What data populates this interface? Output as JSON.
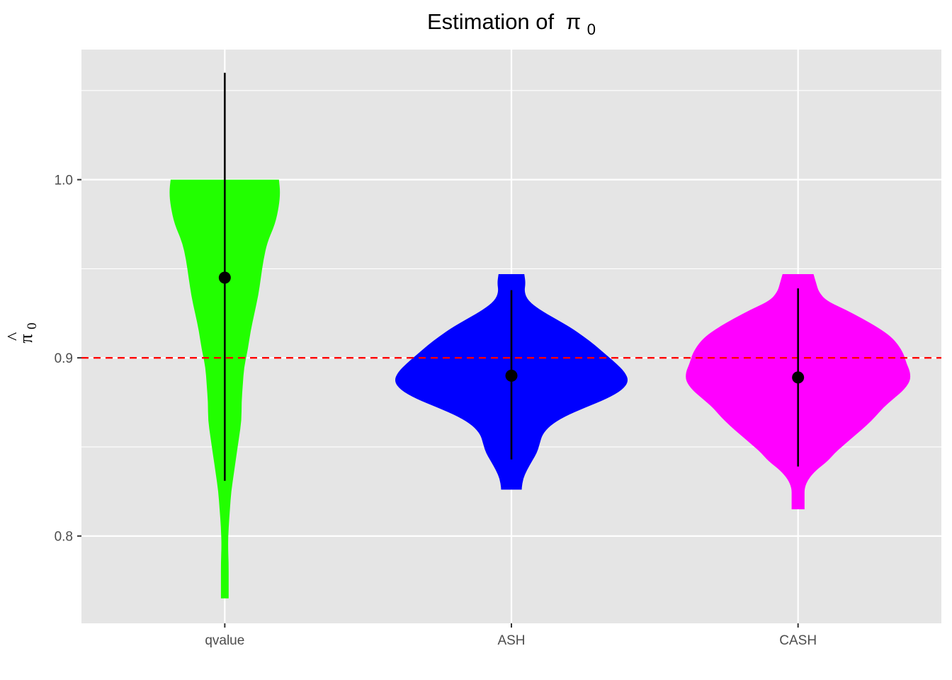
{
  "chart_data": {
    "type": "violin",
    "title": "Estimation of",
    "title_symbol": "π",
    "title_subscript": "0",
    "ylabel_hat": "^",
    "ylabel_symbol": "π",
    "ylabel_subscript": "0",
    "xlabel": "",
    "categories": [
      "qvalue",
      "ASH",
      "CASH"
    ],
    "ylim": [
      0.751,
      1.073
    ],
    "y_ticks": [
      0.8,
      0.9,
      1.0
    ],
    "y_tick_labels": [
      "0.8",
      "0.9",
      "1.0"
    ],
    "reference_line": {
      "y": 0.9,
      "color": "#ff0000",
      "style": "dashed"
    },
    "grid": true,
    "panel_background": "#e5e5e5",
    "series": [
      {
        "category": "qvalue",
        "fill": "#22ff00",
        "summary_point": 0.945,
        "range": [
          0.831,
          1.06
        ],
        "density_profile": [
          [
            1.0,
            0.42
          ],
          [
            0.993,
            0.43
          ],
          [
            0.985,
            0.42
          ],
          [
            0.975,
            0.39
          ],
          [
            0.965,
            0.33
          ],
          [
            0.955,
            0.3
          ],
          [
            0.945,
            0.28
          ],
          [
            0.935,
            0.26
          ],
          [
            0.925,
            0.23
          ],
          [
            0.915,
            0.2
          ],
          [
            0.905,
            0.18
          ],
          [
            0.895,
            0.15
          ],
          [
            0.885,
            0.14
          ],
          [
            0.875,
            0.13
          ],
          [
            0.865,
            0.13
          ],
          [
            0.855,
            0.11
          ],
          [
            0.845,
            0.09
          ],
          [
            0.835,
            0.07
          ],
          [
            0.825,
            0.05
          ],
          [
            0.815,
            0.04
          ],
          [
            0.805,
            0.03
          ],
          [
            0.795,
            0.025
          ],
          [
            0.785,
            0.03
          ],
          [
            0.775,
            0.03
          ],
          [
            0.765,
            0.03
          ]
        ]
      },
      {
        "category": "ASH",
        "fill": "#0000ff",
        "summary_point": 0.89,
        "range": [
          0.843,
          0.938
        ],
        "density_profile": [
          [
            0.947,
            0.1
          ],
          [
            0.942,
            0.11
          ],
          [
            0.937,
            0.1
          ],
          [
            0.932,
            0.13
          ],
          [
            0.927,
            0.22
          ],
          [
            0.922,
            0.34
          ],
          [
            0.917,
            0.46
          ],
          [
            0.912,
            0.56
          ],
          [
            0.907,
            0.65
          ],
          [
            0.902,
            0.73
          ],
          [
            0.897,
            0.81
          ],
          [
            0.892,
            0.88
          ],
          [
            0.887,
            0.91
          ],
          [
            0.882,
            0.86
          ],
          [
            0.877,
            0.74
          ],
          [
            0.872,
            0.57
          ],
          [
            0.867,
            0.41
          ],
          [
            0.862,
            0.3
          ],
          [
            0.857,
            0.24
          ],
          [
            0.852,
            0.22
          ],
          [
            0.847,
            0.2
          ],
          [
            0.842,
            0.16
          ],
          [
            0.837,
            0.12
          ],
          [
            0.832,
            0.09
          ],
          [
            0.827,
            0.08
          ],
          [
            0.826,
            0.08
          ]
        ]
      },
      {
        "category": "CASH",
        "fill": "#ff00ff",
        "summary_point": 0.889,
        "range": [
          0.839,
          0.939
        ],
        "density_profile": [
          [
            0.947,
            0.12
          ],
          [
            0.942,
            0.14
          ],
          [
            0.937,
            0.16
          ],
          [
            0.932,
            0.22
          ],
          [
            0.927,
            0.37
          ],
          [
            0.922,
            0.5
          ],
          [
            0.917,
            0.62
          ],
          [
            0.912,
            0.72
          ],
          [
            0.907,
            0.78
          ],
          [
            0.902,
            0.82
          ],
          [
            0.897,
            0.84
          ],
          [
            0.892,
            0.87
          ],
          [
            0.887,
            0.87
          ],
          [
            0.882,
            0.82
          ],
          [
            0.877,
            0.74
          ],
          [
            0.872,
            0.66
          ],
          [
            0.867,
            0.6
          ],
          [
            0.862,
            0.53
          ],
          [
            0.857,
            0.45
          ],
          [
            0.852,
            0.37
          ],
          [
            0.847,
            0.29
          ],
          [
            0.842,
            0.23
          ],
          [
            0.837,
            0.14
          ],
          [
            0.832,
            0.08
          ],
          [
            0.827,
            0.05
          ],
          [
            0.822,
            0.05
          ],
          [
            0.815,
            0.05
          ]
        ]
      }
    ]
  }
}
